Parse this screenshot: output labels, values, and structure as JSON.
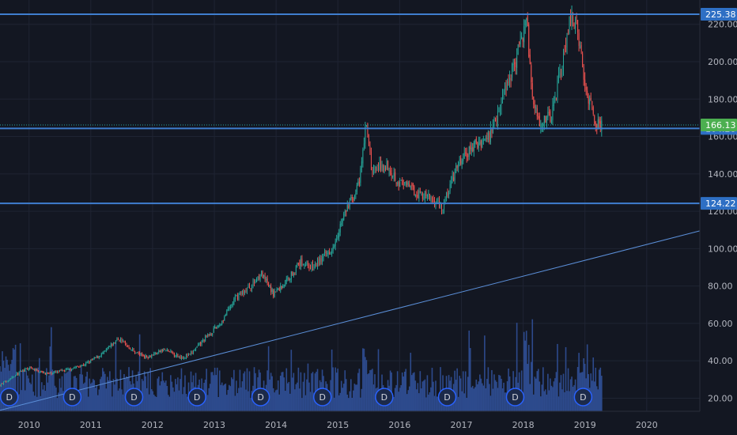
{
  "chart_data": {
    "type": "candlestick",
    "x_axis": {
      "ticks": [
        "2010",
        "2011",
        "2012",
        "2013",
        "2014",
        "2015",
        "2016",
        "2017",
        "2018",
        "2019",
        "2020"
      ],
      "range": [
        2009.53,
        2020.86
      ]
    },
    "y_axis": {
      "ticks": [
        "20.00",
        "40.00",
        "60.00",
        "80.00",
        "100.00",
        "120.00",
        "140.00",
        "160.00",
        "180.00",
        "200.00",
        "220.00"
      ],
      "range": [
        13,
        233
      ]
    },
    "grid": true,
    "price_series": {
      "anchors": [
        [
          2009.53,
          27
        ],
        [
          2009.8,
          33
        ],
        [
          2010.0,
          36
        ],
        [
          2010.3,
          33
        ],
        [
          2010.6,
          35
        ],
        [
          2010.9,
          38
        ],
        [
          2011.2,
          44
        ],
        [
          2011.45,
          52
        ],
        [
          2011.7,
          45
        ],
        [
          2011.9,
          42
        ],
        [
          2012.2,
          46
        ],
        [
          2012.45,
          42
        ],
        [
          2012.6,
          43
        ],
        [
          2012.85,
          52
        ],
        [
          2013.1,
          60
        ],
        [
          2013.35,
          74
        ],
        [
          2013.6,
          80
        ],
        [
          2013.75,
          87
        ],
        [
          2013.95,
          76
        ],
        [
          2014.1,
          80
        ],
        [
          2014.4,
          93
        ],
        [
          2014.6,
          90
        ],
        [
          2014.9,
          100
        ],
        [
          2015.1,
          118
        ],
        [
          2015.35,
          135
        ],
        [
          2015.45,
          166
        ],
        [
          2015.55,
          142
        ],
        [
          2015.8,
          145
        ],
        [
          2016.0,
          135
        ],
        [
          2016.3,
          130
        ],
        [
          2016.55,
          126
        ],
        [
          2016.7,
          122
        ],
        [
          2016.8,
          132
        ],
        [
          2016.95,
          145
        ],
        [
          2017.2,
          155
        ],
        [
          2017.45,
          160
        ],
        [
          2017.7,
          185
        ],
        [
          2017.95,
          208
        ],
        [
          2018.05,
          224
        ],
        [
          2018.15,
          182
        ],
        [
          2018.25,
          168
        ],
        [
          2018.45,
          170
        ],
        [
          2018.6,
          195
        ],
        [
          2018.75,
          220
        ],
        [
          2018.85,
          225
        ],
        [
          2018.9,
          210
        ],
        [
          2019.05,
          180
        ],
        [
          2019.2,
          166
        ],
        [
          2019.27,
          166
        ]
      ]
    },
    "horizontal_levels": [
      {
        "value": 225.38,
        "label": "225.38",
        "style": "solid",
        "color": "#3f7ecf"
      },
      {
        "value": 164.28,
        "label": "164.28",
        "style": "solid",
        "color": "#3f7ecf"
      },
      {
        "value": 124.22,
        "label": "124.22",
        "style": "solid",
        "color": "#3f7ecf"
      },
      {
        "value": 166.13,
        "label": "166.13",
        "style": "dotted",
        "color": "#26a69a"
      }
    ],
    "trendline": {
      "from": [
        2009.53,
        13.5
      ],
      "to": [
        2020.86,
        109.5
      ],
      "color": "#5b8fd8"
    },
    "dividend_markers": {
      "label": "D",
      "x": [
        2009.68,
        2010.7,
        2011.7,
        2012.72,
        2013.75,
        2014.75,
        2015.75,
        2016.77,
        2017.87,
        2018.97
      ]
    },
    "volume": {
      "color": "#2d4a8c"
    },
    "colors": {
      "up": "#26a69a",
      "down": "#ef5350",
      "background": "#131722",
      "grid": "#1f2433"
    }
  }
}
